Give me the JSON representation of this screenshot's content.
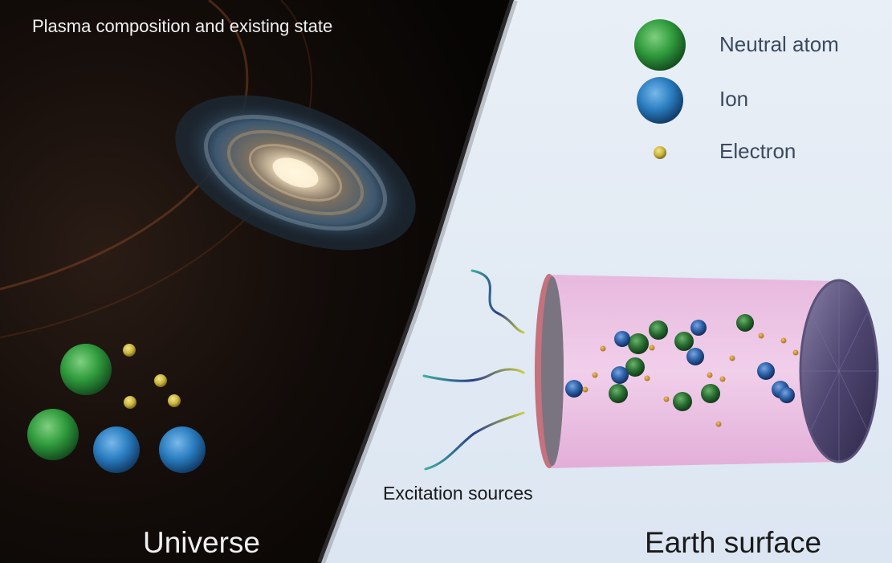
{
  "title": "Plasma composition and existing state",
  "legend": {
    "neutral_atom": "Neutral atom",
    "ion": "Ion",
    "electron": "Electron"
  },
  "excitation_label": "Excitation sources",
  "universe_label": "Universe",
  "earth_label": "Earth surface",
  "colors": {
    "neutral_atom": "#2f9a3c",
    "ion": "#2a7dc0",
    "electron": "#c9b53c",
    "tube": "#efc0e4",
    "space": "#0c0807",
    "sky": "#e6eef8"
  }
}
